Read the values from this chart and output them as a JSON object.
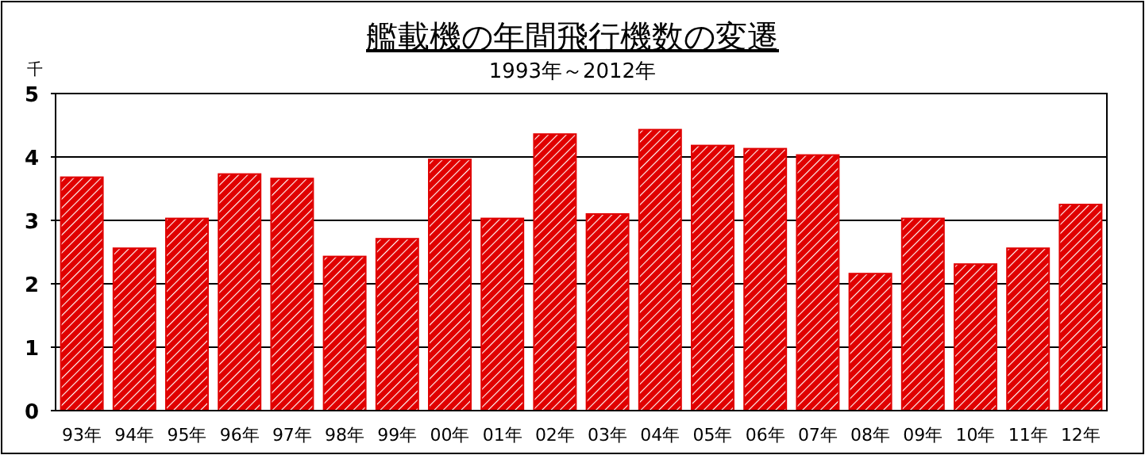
{
  "chart_data": {
    "type": "bar",
    "title": "艦載機の年間飛行機数の変遷",
    "subtitle": "1993年～2012年",
    "ylabel": "千",
    "categories": [
      "93年",
      "94年",
      "95年",
      "96年",
      "97年",
      "98年",
      "99年",
      "00年",
      "01年",
      "02年",
      "03年",
      "04年",
      "05年",
      "06年",
      "07年",
      "08年",
      "09年",
      "10年",
      "11年",
      "12年"
    ],
    "values": [
      3.68,
      2.56,
      3.03,
      3.73,
      3.66,
      2.43,
      2.71,
      3.96,
      3.03,
      4.36,
      3.1,
      4.43,
      4.18,
      4.13,
      4.03,
      2.16,
      3.03,
      2.31,
      2.56,
      3.25
    ],
    "color": "#e00000",
    "ylim": [
      0,
      5
    ],
    "yticks": [
      0,
      1,
      2,
      3,
      4,
      5
    ],
    "grid": "y"
  }
}
